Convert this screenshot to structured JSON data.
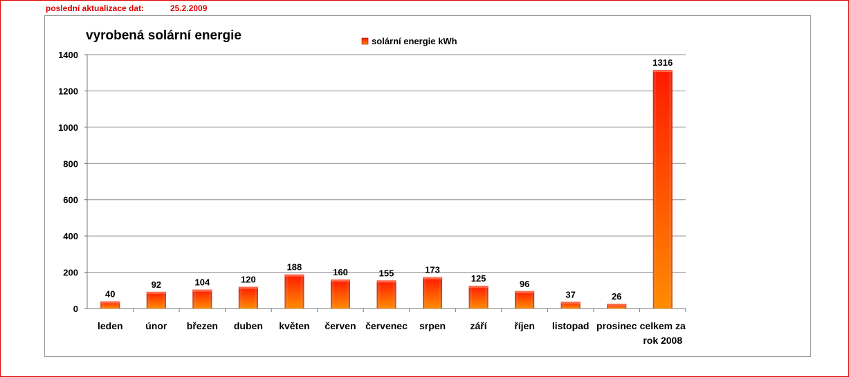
{
  "header": {
    "update_label": "poslední aktualizace dat:",
    "update_date": "25.2.2009"
  },
  "colors": {
    "accent_red": "#e00000",
    "bar_top": "#ff1a00",
    "bar_bottom": "#ff8c00",
    "gridline": "#8c8c8c"
  },
  "chart_data": {
    "type": "bar",
    "title": "vyrobená solární energie",
    "legend": {
      "position": "top",
      "entries": [
        "solární energie kWh"
      ]
    },
    "categories": [
      [
        "leden"
      ],
      [
        "únor"
      ],
      [
        "březen"
      ],
      [
        "duben"
      ],
      [
        "květen"
      ],
      [
        "červen"
      ],
      [
        "červenec"
      ],
      [
        "srpen"
      ],
      [
        "září"
      ],
      [
        "říjen"
      ],
      [
        "listopad"
      ],
      [
        "prosinec"
      ],
      [
        "celkem za",
        "rok 2008"
      ]
    ],
    "series": [
      {
        "name": "solární energie kWh",
        "values": [
          40,
          92,
          104,
          120,
          188,
          160,
          155,
          173,
          125,
          96,
          37,
          26,
          1316
        ]
      }
    ],
    "y_ticks": [
      "0",
      "200",
      "400",
      "600",
      "800",
      "1000",
      "1200",
      "1400"
    ],
    "ylim": [
      0,
      1400
    ],
    "grid": true
  }
}
